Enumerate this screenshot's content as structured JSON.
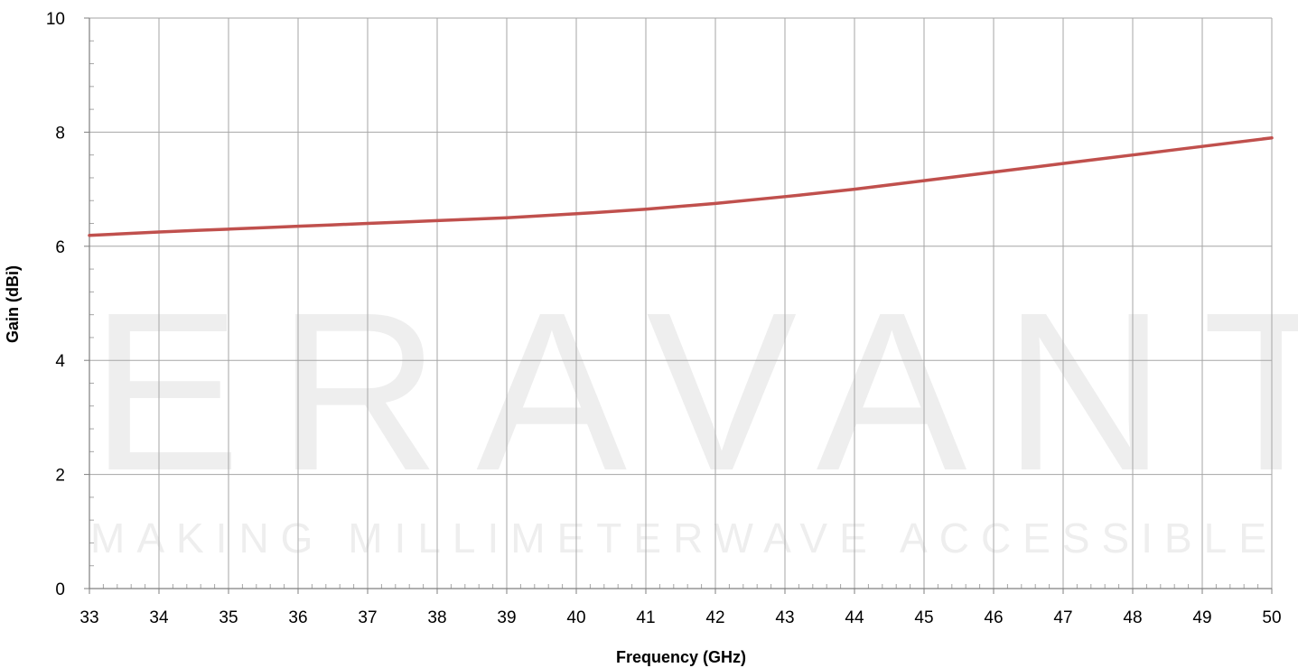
{
  "watermark": {
    "logo_text": "ERAVANT",
    "tagline": "MAKING MILLIMETERWAVE ACCESSIBLE",
    "color": "#eeeeee"
  },
  "chart_data": {
    "type": "line",
    "title": "",
    "xlabel": "Frequency (GHz)",
    "ylabel": "Gain (dBi)",
    "xlim": [
      33,
      50
    ],
    "ylim": [
      0,
      10
    ],
    "x_ticks": [
      "33",
      "34",
      "35",
      "36",
      "37",
      "38",
      "39",
      "40",
      "41",
      "42",
      "43",
      "44",
      "45",
      "46",
      "47",
      "48",
      "49",
      "50"
    ],
    "y_ticks": [
      "0",
      "2",
      "4",
      "6",
      "8",
      "10"
    ],
    "grid": true,
    "legend": "none",
    "series": [
      {
        "color": "#c0504d",
        "x": [
          33,
          34,
          35,
          36,
          37,
          38,
          39,
          40,
          41,
          42,
          43,
          44,
          45,
          46,
          47,
          48,
          49,
          50
        ],
        "y": [
          6.19,
          6.25,
          6.3,
          6.35,
          6.4,
          6.45,
          6.5,
          6.57,
          6.65,
          6.75,
          6.87,
          7.0,
          7.15,
          7.3,
          7.45,
          7.6,
          7.75,
          7.9
        ]
      }
    ]
  }
}
